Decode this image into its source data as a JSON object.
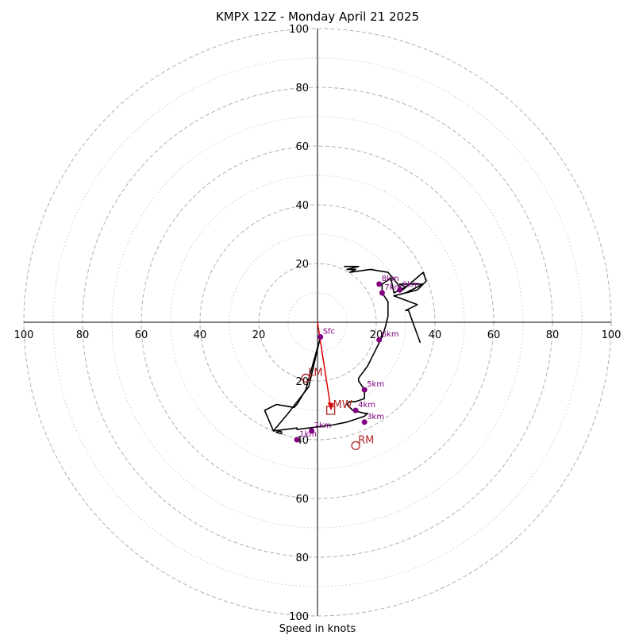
{
  "chart_data": {
    "type": "hodograph",
    "title": "KMPX 12Z - Monday April 21 2025",
    "xlabel": "Speed in knots",
    "units": "knots",
    "range": [
      -100,
      100
    ],
    "tick_values": [
      -100,
      -80,
      -60,
      -40,
      -20,
      20,
      40,
      60,
      80,
      100
    ],
    "tick_labels": [
      "100",
      "80",
      "60",
      "40",
      "20",
      "20",
      "40",
      "60",
      "80",
      "100"
    ],
    "rings_major": [
      20,
      40,
      60,
      80,
      100
    ],
    "rings_minor": [
      10,
      30,
      50,
      70,
      90
    ],
    "grid": true,
    "colors": {
      "trace": "#000000",
      "points": "#800080",
      "motion": "#b22222",
      "shear_arrow": "#e00000",
      "grid": "#b0b0b0"
    },
    "trace": [
      [
        1,
        -5
      ],
      [
        -3,
        -22
      ],
      [
        -10,
        -31
      ],
      [
        -15,
        -37
      ],
      [
        -7,
        -36
      ],
      [
        -7,
        -36.5
      ],
      [
        5,
        -35
      ],
      [
        10,
        -34
      ],
      [
        13,
        -33
      ],
      [
        16,
        -32
      ],
      [
        17,
        -31
      ],
      [
        16,
        -31
      ],
      [
        12,
        -30
      ],
      [
        10,
        -28
      ],
      [
        11,
        -27
      ],
      [
        13,
        -27
      ],
      [
        16,
        -26
      ],
      [
        16,
        -23
      ],
      [
        14,
        -20
      ],
      [
        14,
        -19
      ],
      [
        17,
        -15
      ],
      [
        19,
        -11
      ],
      [
        21,
        -7
      ],
      [
        22,
        -5
      ],
      [
        23,
        -2
      ],
      [
        24,
        2
      ],
      [
        24,
        5
      ],
      [
        24,
        7
      ],
      [
        22,
        10
      ],
      [
        22,
        13
      ],
      [
        25,
        15
      ],
      [
        26,
        10
      ],
      [
        30,
        12
      ],
      [
        28,
        13
      ],
      [
        32,
        13
      ],
      [
        36,
        13
      ],
      [
        30,
        10
      ],
      [
        26,
        9
      ],
      [
        34,
        11
      ],
      [
        37,
        14
      ],
      [
        36,
        17
      ],
      [
        29,
        11
      ],
      [
        24,
        17
      ],
      [
        18,
        18
      ],
      [
        11,
        17
      ],
      [
        13,
        18
      ],
      [
        10,
        18
      ],
      [
        14,
        19
      ],
      [
        9,
        19
      ]
    ],
    "trace_spur": [
      [
        -12,
        -37.5
      ],
      [
        -13,
        -37
      ],
      [
        -14,
        -37.5
      ],
      [
        -12,
        -38
      ]
    ],
    "trace_tail": [
      [
        26,
        9
      ],
      [
        34,
        6
      ],
      [
        30,
        4
      ],
      [
        31,
        4
      ],
      [
        35,
        -7
      ]
    ],
    "trace_loop": [
      [
        1,
        -5
      ],
      [
        -4,
        -23
      ],
      [
        -7,
        -28
      ],
      [
        -8,
        -29
      ],
      [
        -14,
        -28
      ],
      [
        -18,
        -30
      ],
      [
        -15,
        -37
      ]
    ],
    "height_points": [
      {
        "label": "Sfc",
        "u": 1,
        "v": -5
      },
      {
        "label": "1km",
        "u": -7,
        "v": -40
      },
      {
        "label": "2km",
        "u": -2,
        "v": -37
      },
      {
        "label": "3km",
        "u": 16,
        "v": -34
      },
      {
        "label": "4km",
        "u": 13,
        "v": -30
      },
      {
        "label": "5km",
        "u": 16,
        "v": -23
      },
      {
        "label": "6km",
        "u": 21,
        "v": -6
      },
      {
        "label": "7km",
        "u": 22,
        "v": 10
      },
      {
        "label": "8km",
        "u": 21,
        "v": 13
      },
      {
        "label": "9km",
        "u": 28,
        "v": 11
      }
    ],
    "storm_motion": [
      {
        "label": "LM",
        "u": -4,
        "v": -19,
        "marker": "circle"
      },
      {
        "label": "MW",
        "u": 4.5,
        "v": -30,
        "marker": "square"
      },
      {
        "label": "RM",
        "u": 13,
        "v": -42,
        "marker": "circle"
      }
    ],
    "shear_vector": {
      "from": [
        0,
        0
      ],
      "to": [
        4.5,
        -30
      ]
    }
  }
}
